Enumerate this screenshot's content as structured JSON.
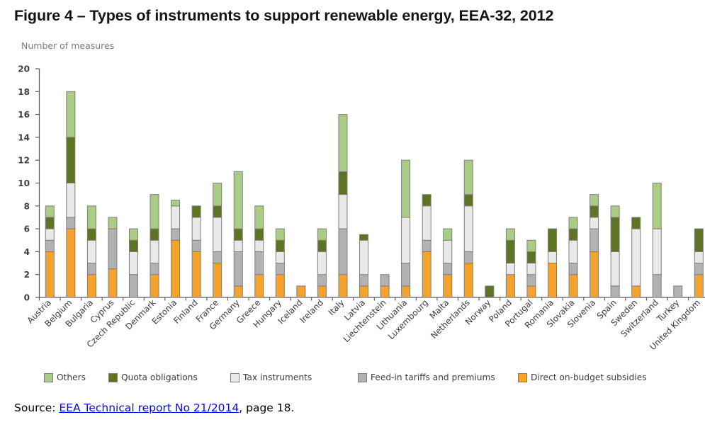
{
  "title": "Figure 4 – Types of instruments to support renewable energy, EEA-32, 2012",
  "y_axis_title": "Number of measures",
  "source": {
    "prefix": "Source: ",
    "link_text": "EEA Technical report No 21/2014",
    "suffix": ", page 18."
  },
  "colors": {
    "others": "#aacd86",
    "quota_obligations": "#5e7422",
    "tax_instruments": "#e9e9e9",
    "feed_in_tariffs": "#b2b2b2",
    "direct_subsidies": "#f3a32e",
    "bar_border": "#7f7f7f",
    "axis": "#595959",
    "tick_label": "#3f3f45",
    "link": "#0808ee"
  },
  "chart_data": {
    "type": "bar",
    "stacked": true,
    "title": "Figure 4 – Types of instruments to support renewable energy, EEA-32, 2012",
    "ylabel": "Number of measures",
    "xlabel": "",
    "ylim": [
      0,
      20
    ],
    "ytick_step": 2,
    "grid": false,
    "legend_position": "bottom",
    "categories": [
      "Austria",
      "Belgium",
      "Bulgaria",
      "Cyprus",
      "Czech Republic",
      "Denmark",
      "Estonia",
      "Finland",
      "France",
      "Germany",
      "Greece",
      "Hungary",
      "Iceland",
      "Ireland",
      "Italy",
      "Latvia",
      "Liechtenstein",
      "Lithuania",
      "Luxembourg",
      "Malta",
      "Netherlands",
      "Norway",
      "Poland",
      "Portugal",
      "Romania",
      "Slovakia",
      "Slovenia",
      "Spain",
      "Sweden",
      "Switzerland",
      "Turkey",
      "United Kingdom"
    ],
    "series": [
      {
        "name": "Direct on-budget subsidies",
        "color": "#f3a32e",
        "values": [
          4,
          6,
          2,
          2.5,
          0,
          2,
          5,
          4,
          3,
          1,
          2,
          2,
          1,
          1,
          2,
          1,
          1,
          1,
          4,
          2,
          3,
          0,
          2,
          1,
          3,
          2,
          4,
          0,
          1,
          0,
          0,
          2
        ]
      },
      {
        "name": "Feed-in tariffs and premiums",
        "color": "#b2b2b2",
        "values": [
          1,
          1,
          1,
          3.5,
          2,
          1,
          1,
          1,
          1,
          3,
          2,
          1,
          0,
          1,
          4,
          1,
          1,
          2,
          1,
          1,
          1,
          0,
          0,
          1,
          0,
          1,
          2,
          1,
          0,
          2,
          1,
          1
        ]
      },
      {
        "name": "Tax instruments",
        "color": "#e9e9e9",
        "values": [
          1,
          3,
          2,
          0,
          2,
          2,
          2,
          2,
          3,
          1,
          1,
          1,
          0,
          2,
          3,
          3,
          0,
          4,
          3,
          2,
          4,
          0,
          1,
          1,
          1,
          2,
          1,
          3,
          5,
          4,
          0,
          1
        ]
      },
      {
        "name": "Quota obligations",
        "color": "#5e7422",
        "values": [
          1,
          4,
          1,
          0,
          1,
          1,
          0,
          1,
          1,
          1,
          1,
          1,
          0,
          1,
          2,
          0.5,
          0,
          0,
          1,
          0,
          1,
          1,
          2,
          1,
          2,
          1,
          1,
          3,
          1,
          0,
          0,
          2
        ]
      },
      {
        "name": "Others",
        "color": "#aacd86",
        "values": [
          1,
          4,
          2,
          1,
          1,
          3,
          0.5,
          0,
          2,
          5,
          2,
          1,
          0,
          1,
          5,
          0,
          0,
          5,
          0,
          1,
          3,
          0,
          1,
          1,
          0,
          1,
          1,
          1,
          0,
          4,
          0,
          0
        ]
      }
    ],
    "legend_order": [
      "Others",
      "Quota obligations",
      "Tax instruments",
      "Feed-in tariffs and premiums",
      "Direct on-budget subsidies"
    ]
  }
}
